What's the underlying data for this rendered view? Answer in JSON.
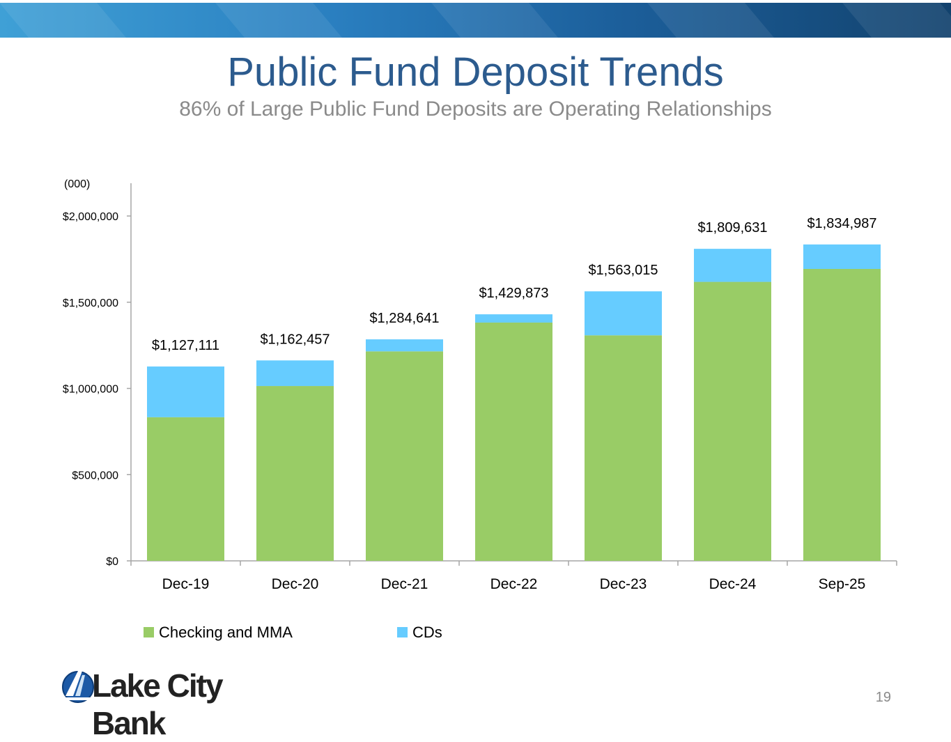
{
  "slide": {
    "title": "Public Fund Deposit Trends",
    "subtitle": "86% of Large Public Fund Deposits are Operating Relationships",
    "unit_label": "(000)",
    "logo_text": "Lake City Bank",
    "page_number": "19"
  },
  "colors": {
    "checking": "#99cc66",
    "cds": "#66ccff",
    "title": "#2c5b8e",
    "axis": "#a6a6a6"
  },
  "chart_data": {
    "type": "bar",
    "stacked": true,
    "categories": [
      "Dec-19",
      "Dec-20",
      "Dec-21",
      "Dec-22",
      "Dec-23",
      "Dec-24",
      "Sep-25"
    ],
    "series": [
      {
        "name": "Checking and MMA",
        "color": "#99cc66",
        "values": [
          833000,
          1014000,
          1215000,
          1382000,
          1308000,
          1618000,
          1693000
        ]
      },
      {
        "name": "CDs",
        "color": "#66ccff",
        "values": [
          294111,
          148457,
          69641,
          47873,
          255015,
          191631,
          141987
        ]
      }
    ],
    "totals": [
      1127111,
      1162457,
      1284641,
      1429873,
      1563015,
      1809631,
      1834987
    ],
    "total_labels": [
      "$1,127,111",
      "$1,162,457",
      "$1,284,641",
      "$1,429,873",
      "$1,563,015",
      "$1,809,631",
      "$1,834,987"
    ],
    "yticks": [
      0,
      500000,
      1000000,
      1500000,
      2000000
    ],
    "ytick_labels": [
      "$0",
      "$500,000",
      "$1,000,000",
      "$1,500,000",
      "$2,000,000"
    ],
    "ylim": [
      0,
      2190000
    ],
    "grid": false,
    "legend_position": "bottom-left"
  }
}
